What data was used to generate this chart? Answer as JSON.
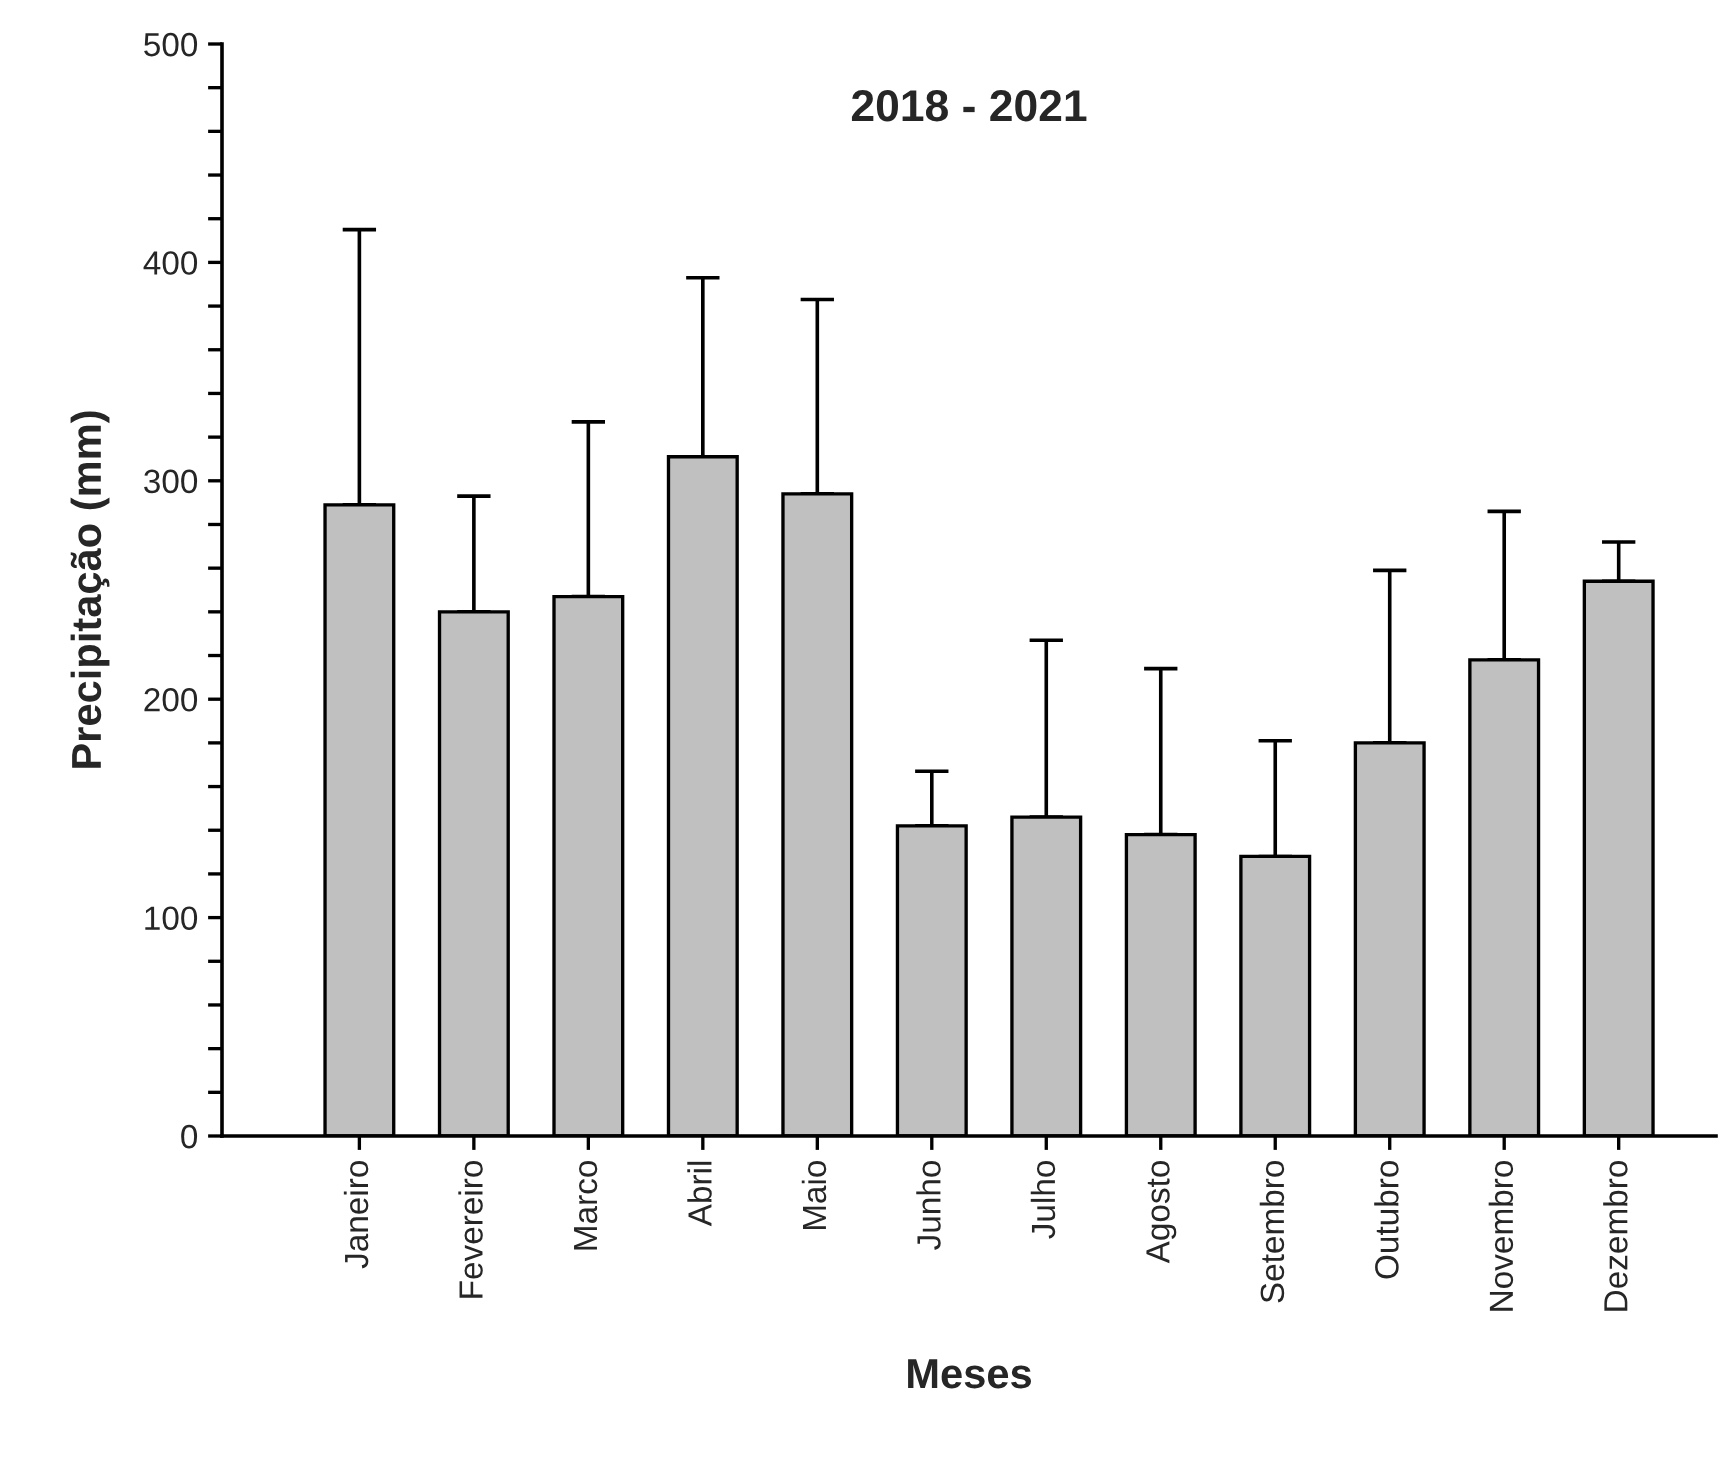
{
  "chart_data": {
    "type": "bar",
    "title": "2018 - 2021",
    "xlabel": "Meses",
    "ylabel": "Precipitação (mm)",
    "categories": [
      "Janeiro",
      "Fevereiro",
      "Marco",
      "Abril",
      "Maio",
      "Junho",
      "Julho",
      "Agosto",
      "Setembro",
      "Outubro",
      "Novembro",
      "Dezembro"
    ],
    "values": [
      289,
      240,
      247,
      311,
      294,
      142,
      146,
      138,
      128,
      180,
      218,
      254
    ],
    "errors": [
      [
        289,
        415
      ],
      [
        240,
        293
      ],
      [
        247,
        327
      ],
      [
        311,
        393
      ],
      [
        294,
        383
      ],
      [
        142,
        167
      ],
      [
        146,
        227
      ],
      [
        138,
        214
      ],
      [
        128,
        181
      ],
      [
        180,
        259
      ],
      [
        218,
        286
      ],
      [
        254,
        272
      ]
    ],
    "color": "#c0c0c0",
    "ylim": [
      0,
      500
    ],
    "yticks": [
      0,
      {
        "value": 20,
        "label": null
      },
      {
        "value": 40,
        "label": null
      },
      {
        "value": 60,
        "label": null
      },
      {
        "value": 80,
        "label": null
      },
      100,
      {
        "value": 120,
        "label": null
      },
      {
        "value": 140,
        "label": null
      },
      {
        "value": 160,
        "label": null
      },
      {
        "value": 180,
        "label": null
      },
      200,
      {
        "value": 220,
        "label": null
      },
      {
        "value": 240,
        "label": null
      },
      {
        "value": 260,
        "label": null
      },
      {
        "value": 280,
        "label": null
      },
      300,
      {
        "value": 320,
        "label": null
      },
      {
        "value": 340,
        "label": null
      },
      {
        "value": 360,
        "label": null
      },
      {
        "value": 380,
        "label": null
      },
      400,
      {
        "value": 420,
        "label": null
      },
      {
        "value": 440,
        "label": null
      },
      {
        "value": 460,
        "label": null
      },
      {
        "value": 480,
        "label": null
      },
      500
    ],
    "grid": false
  }
}
